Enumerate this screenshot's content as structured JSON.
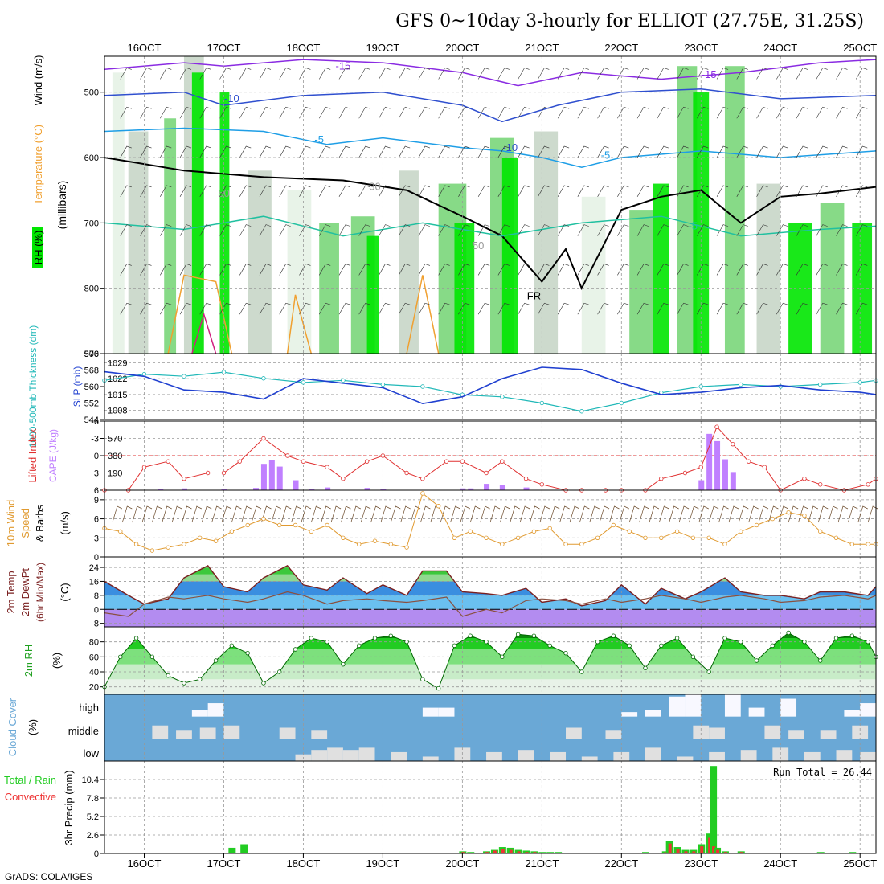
{
  "title": "GFS 0~10day 3-hourly for ELLIOT (27.75E, 31.25S)",
  "footer": "GrADS: COLA/IGES",
  "colors": {
    "frame": "#000000",
    "grid": "#999999",
    "rh_light": "#e6f2e6",
    "rh_gray": "#c8d6c8",
    "rh_mid": "#7ad67a",
    "rh_bright": "#00e600",
    "rh_dark": "#009900",
    "temp_minus15": "#8a2be2",
    "temp_minus10": "#2f4fcf",
    "temp_minus5": "#1e9ee6",
    "temp_plus5": "#20c0a0",
    "temp_plus10": "#f0a030",
    "temp_plus15": "#d02080",
    "thickness": "#20b8b8",
    "slp": "#2040d0",
    "lifted_index": "#e03030",
    "cape": "#c080ff",
    "wind_speed": "#e09a30",
    "wind_barb": "#6b4a2a",
    "cloud_blue": "#6aa8d6",
    "cloud_gray": "#e0e0e0",
    "cloud_white": "#f8f8ff",
    "precip_total": "#22cc22",
    "precip_conv": "#ee3333",
    "t_band_yellow": "#f2f25a",
    "t_band_green": "#3cc83c",
    "t_band_light": "#90d890",
    "t_band_blue": "#3a8ee0",
    "t_band_cyan": "#6ac0f0",
    "t_band_purple": "#b38cf0"
  },
  "x_axis": {
    "ticks": [
      "16OCT",
      "17OCT",
      "18OCT",
      "19OCT",
      "20OCT",
      "21OCT",
      "22OCT",
      "23OCT",
      "24OCT",
      "25OCT"
    ],
    "day_positions": [
      0.5,
      1.5,
      2.5,
      3.5,
      4.5,
      5.5,
      6.5,
      7.5,
      8.5,
      9.5
    ],
    "xlim_days": [
      0,
      9.7
    ]
  },
  "panels": {
    "upper_air": {
      "ylabel_rh": "RH (%)",
      "ylabel_temp": "Temperature (°C)",
      "ylabel_wind": "Wind (m/s)",
      "ylabel_units": "(millibars)",
      "yticks": [
        "500",
        "600",
        "700",
        "800",
        "900"
      ],
      "ytick_values": [
        500,
        600,
        700,
        800,
        900
      ],
      "ylim": [
        445,
        900
      ],
      "contour_labels": [
        "-15",
        "-15",
        "-10",
        "-10",
        "-5",
        "-5",
        "-5",
        "FR",
        "30",
        "50",
        "50"
      ]
    },
    "slp_thickness": {
      "ylabel_thickness": "1000-500mb Thickness (dm)",
      "ylabel_slp": "SLP (mb)",
      "left_ticks": [
        "576",
        "568",
        "560",
        "552",
        "544"
      ],
      "left_tick_values": [
        576,
        568,
        560,
        552,
        544
      ],
      "right_ticks": [
        "1029",
        "1022",
        "1015",
        "1008"
      ],
      "right_tick_values": [
        1029,
        1022,
        1015,
        1008
      ]
    },
    "cape_li": {
      "ylabel_li": "Lifted Index",
      "ylabel_cape": "CAPE (J/kg)",
      "li_ticks": [
        "-6",
        "-3",
        "0",
        "3",
        "6"
      ],
      "li_tick_values": [
        -6,
        -3,
        0,
        3,
        6
      ],
      "cape_ticks": [
        "570",
        "380",
        "190"
      ],
      "cape_tick_values": [
        570,
        380,
        190
      ]
    },
    "wind10m": {
      "ylabel_1": "10m Wind",
      "ylabel_2": "Speed",
      "ylabel_3": "& Barbs",
      "ylabel_units": "(m/s)",
      "yticks": [
        "9",
        "6",
        "3",
        "0"
      ],
      "ytick_values": [
        9,
        6,
        3,
        0
      ]
    },
    "temp2m": {
      "ylabel_1": "2m Temp",
      "ylabel_2": "2m DewPt",
      "ylabel_3": "(6hr Min/Max)",
      "ylabel_units": "(°C)",
      "yticks": [
        "24",
        "16",
        "8",
        "0",
        "-8"
      ],
      "ytick_values": [
        24,
        16,
        8,
        0,
        -8
      ]
    },
    "rh2m": {
      "ylabel": "2m RH",
      "ylabel_units": "(%)",
      "yticks": [
        "80",
        "60",
        "40",
        "20"
      ],
      "ytick_values": [
        80,
        60,
        40,
        20
      ]
    },
    "cloud": {
      "ylabel": "Cloud Cover",
      "ylabel_units": "(%)",
      "levels": [
        "high",
        "middle",
        "low"
      ]
    },
    "precip": {
      "ylabel_1": "Total / Rain",
      "ylabel_2": "Convective",
      "ylabel_units": "3hr Precip (mm)",
      "yticks": [
        "10.4",
        "7.8",
        "5.2",
        "2.6",
        "0"
      ],
      "ytick_values": [
        10.4,
        7.8,
        5.2,
        2.6,
        0
      ],
      "run_total_label": "Run Total = 26.44"
    }
  },
  "chart_data": [
    {
      "type": "line",
      "panel": "slp_thickness",
      "x_days": [
        0,
        0.5,
        1,
        1.5,
        2,
        2.5,
        3,
        3.5,
        4,
        4.5,
        5,
        5.5,
        6,
        6.5,
        7,
        7.5,
        8,
        8.5,
        9,
        9.5,
        9.7
      ],
      "series": [
        {
          "name": "thickness",
          "values": [
            563,
            566,
            565,
            567,
            564,
            562,
            563,
            561,
            560,
            556,
            555,
            552,
            548,
            552,
            557,
            560,
            561,
            560,
            561,
            562,
            563
          ]
        },
        {
          "name": "SLP",
          "values": [
            1025,
            1023,
            1017,
            1016,
            1013,
            1022,
            1020,
            1018,
            1011,
            1014,
            1022,
            1027,
            1026,
            1020,
            1015,
            1016,
            1018,
            1019,
            1017,
            1016,
            1015
          ]
        }
      ]
    },
    {
      "type": "bar",
      "panel": "cape_li",
      "x_days": [
        0.7,
        1.0,
        1.5,
        1.9,
        2.0,
        2.1,
        2.2,
        2.4,
        2.6,
        2.8,
        3.3,
        3.5,
        4.5,
        4.6,
        4.8,
        5.0,
        5.3,
        7.5,
        7.6,
        7.7,
        7.8,
        7.9
      ],
      "series": [
        {
          "name": "CAPE",
          "values": [
            10,
            20,
            15,
            25,
            290,
            330,
            260,
            110,
            10,
            30,
            25,
            10,
            20,
            20,
            70,
            60,
            30,
            110,
            620,
            540,
            340,
            200
          ]
        }
      ]
    },
    {
      "type": "line",
      "panel": "cape_li",
      "x_days": [
        0,
        0.3,
        0.5,
        0.8,
        1.0,
        1.3,
        1.5,
        1.7,
        2.0,
        2.3,
        2.5,
        2.8,
        3.0,
        3.3,
        3.5,
        3.8,
        4.0,
        4.3,
        4.5,
        4.8,
        5.0,
        5.3,
        5.5,
        5.8,
        6.0,
        6.3,
        6.5,
        6.8,
        7.0,
        7.3,
        7.5,
        7.7,
        7.9,
        8.1,
        8.3,
        8.5,
        8.8,
        9.0,
        9.3,
        9.6,
        9.7
      ],
      "series": [
        {
          "name": "Lifted Index",
          "values": [
            6,
            6,
            2,
            1,
            4,
            3,
            3,
            1,
            -3,
            0,
            1,
            2,
            4,
            1,
            0,
            3,
            4,
            1,
            1,
            3,
            1,
            4,
            5,
            6,
            6,
            6,
            6,
            6,
            4,
            3,
            2,
            -5,
            -2,
            1,
            2,
            6,
            4,
            5,
            6,
            5,
            4
          ]
        }
      ]
    },
    {
      "type": "line",
      "panel": "wind10m",
      "x_days": [
        0,
        0.2,
        0.4,
        0.6,
        0.8,
        1.0,
        1.2,
        1.4,
        1.6,
        1.8,
        2.0,
        2.2,
        2.4,
        2.6,
        2.8,
        3.0,
        3.2,
        3.4,
        3.6,
        3.8,
        4.0,
        4.2,
        4.4,
        4.6,
        4.8,
        5.0,
        5.2,
        5.4,
        5.6,
        5.8,
        6.0,
        6.2,
        6.4,
        6.6,
        6.8,
        7.0,
        7.2,
        7.4,
        7.6,
        7.8,
        8.0,
        8.2,
        8.4,
        8.6,
        8.8,
        9.0,
        9.2,
        9.4,
        9.6,
        9.7
      ],
      "series": [
        {
          "name": "10m Wind Speed",
          "values": [
            4.5,
            4,
            2,
            1,
            1.5,
            2,
            3,
            2.5,
            4,
            5,
            6,
            5,
            5,
            4,
            5,
            3,
            2,
            2.5,
            2,
            1.5,
            10,
            8,
            3,
            4,
            3,
            2,
            3,
            4,
            4.5,
            2,
            2,
            3,
            5,
            4,
            3,
            3,
            4,
            3,
            3,
            2,
            4,
            5,
            6,
            7,
            6.5,
            4,
            3,
            2,
            2,
            2
          ]
        }
      ]
    },
    {
      "type": "area",
      "panel": "temp2m",
      "x_days": [
        0,
        0.3,
        0.5,
        0.8,
        1.0,
        1.3,
        1.5,
        1.8,
        2.0,
        2.3,
        2.5,
        2.8,
        3.0,
        3.3,
        3.5,
        3.8,
        4.0,
        4.3,
        4.5,
        4.8,
        5.0,
        5.3,
        5.5,
        5.8,
        6.0,
        6.3,
        6.5,
        6.8,
        7.0,
        7.3,
        7.5,
        7.8,
        8.0,
        8.3,
        8.5,
        8.8,
        9.0,
        9.3,
        9.6,
        9.7
      ],
      "series": [
        {
          "name": "2m Temp",
          "values": [
            16,
            8,
            3,
            6,
            18,
            25,
            13,
            10,
            18,
            25,
            14,
            11,
            18,
            9,
            14,
            8,
            22,
            22,
            10,
            9,
            8,
            12,
            4,
            6,
            2,
            5,
            14,
            3,
            12,
            6,
            10,
            18,
            10,
            8,
            8,
            6,
            10,
            10,
            8,
            13
          ]
        },
        {
          "name": "2m DewPt",
          "values": [
            -2,
            -4,
            3,
            7,
            6,
            8,
            6,
            4,
            6,
            10,
            8,
            3,
            5,
            6,
            5,
            4,
            5,
            7,
            -4,
            0,
            -2,
            5,
            6,
            5,
            3,
            6,
            4,
            6,
            8,
            6,
            4,
            7,
            8,
            6,
            4,
            5,
            7,
            8,
            6,
            8
          ]
        }
      ]
    },
    {
      "type": "area",
      "panel": "rh2m",
      "x_days": [
        0,
        0.2,
        0.4,
        0.6,
        0.8,
        1.0,
        1.2,
        1.4,
        1.6,
        1.8,
        2.0,
        2.2,
        2.4,
        2.6,
        2.8,
        3.0,
        3.2,
        3.4,
        3.6,
        3.8,
        4.0,
        4.2,
        4.4,
        4.6,
        4.8,
        5.0,
        5.2,
        5.4,
        5.6,
        5.8,
        6.0,
        6.2,
        6.4,
        6.6,
        6.8,
        7.0,
        7.2,
        7.4,
        7.6,
        7.8,
        8.0,
        8.2,
        8.4,
        8.6,
        8.8,
        9.0,
        9.2,
        9.4,
        9.6,
        9.7
      ],
      "series": [
        {
          "name": "2m RH",
          "values": [
            20,
            60,
            85,
            60,
            35,
            25,
            30,
            55,
            75,
            65,
            25,
            40,
            70,
            85,
            80,
            50,
            75,
            85,
            88,
            80,
            30,
            18,
            75,
            88,
            80,
            60,
            90,
            88,
            75,
            65,
            40,
            80,
            88,
            75,
            45,
            75,
            85,
            60,
            40,
            85,
            80,
            55,
            75,
            92,
            80,
            55,
            85,
            88,
            80,
            60
          ]
        }
      ]
    },
    {
      "type": "bar",
      "panel": "cloud",
      "levels": [
        "high",
        "middle",
        "low"
      ],
      "series": [
        {
          "name": "high cloud (%)",
          "x_days": [
            1.1,
            1.3,
            4.0,
            4.2,
            6.5,
            6.8,
            7.1,
            7.3,
            7.8,
            8.1,
            8.5,
            9.3,
            9.5
          ],
          "values": [
            30,
            60,
            40,
            40,
            20,
            30,
            90,
            100,
            100,
            40,
            80,
            30,
            60
          ]
        },
        {
          "name": "middle cloud (%)",
          "x_days": [
            0.6,
            0.9,
            1.2,
            1.5,
            2.2,
            2.6,
            5.8,
            6.3,
            7.4,
            7.6,
            8.3,
            8.6,
            9.0,
            9.4
          ],
          "values": [
            60,
            40,
            50,
            60,
            50,
            40,
            50,
            40,
            60,
            50,
            60,
            40,
            40,
            60
          ]
        },
        {
          "name": "low cloud (%)",
          "x_days": [
            2.4,
            2.6,
            2.8,
            3.0,
            3.2,
            3.6,
            4.0,
            4.4,
            4.8,
            5.2,
            5.6,
            6.0,
            6.4,
            6.8,
            7.2,
            7.6,
            8.0,
            8.4,
            8.8,
            9.2,
            9.5
          ],
          "values": [
            30,
            50,
            60,
            50,
            60,
            40,
            20,
            60,
            40,
            50,
            40,
            20,
            40,
            60,
            20,
            40,
            50,
            60,
            40,
            50,
            40
          ]
        }
      ]
    },
    {
      "type": "bar",
      "panel": "precip",
      "x_days": [
        1.6,
        1.75,
        4.5,
        4.6,
        4.8,
        4.9,
        5.0,
        5.1,
        5.2,
        5.3,
        5.4,
        5.5,
        5.6,
        5.7,
        6.8,
        7.05,
        7.1,
        7.2,
        7.3,
        7.4,
        7.5,
        7.6,
        7.65,
        7.7,
        7.8,
        8.0,
        9.0,
        9.4
      ],
      "series": [
        {
          "name": "Total",
          "values": [
            0.8,
            1.3,
            0.3,
            0.2,
            0.3,
            0.5,
            0.9,
            0.8,
            0.5,
            0.4,
            0.3,
            0.2,
            0.2,
            0.2,
            0.2,
            0.3,
            1.7,
            0.9,
            0.5,
            0.5,
            1.3,
            2.8,
            12.3,
            0.8,
            0.3,
            0.3,
            0.2,
            0.2
          ]
        },
        {
          "name": "Convective",
          "values": [
            0,
            0,
            0.2,
            0.1,
            0.2,
            0.4,
            0.6,
            0.5,
            0.3,
            0.2,
            0.2,
            0.1,
            0.1,
            0.1,
            0.1,
            0.2,
            1.4,
            0.6,
            0.3,
            0.3,
            1.0,
            2.2,
            1.0,
            0.5,
            0.2,
            0.2,
            0.1,
            0.1
          ]
        }
      ]
    }
  ]
}
